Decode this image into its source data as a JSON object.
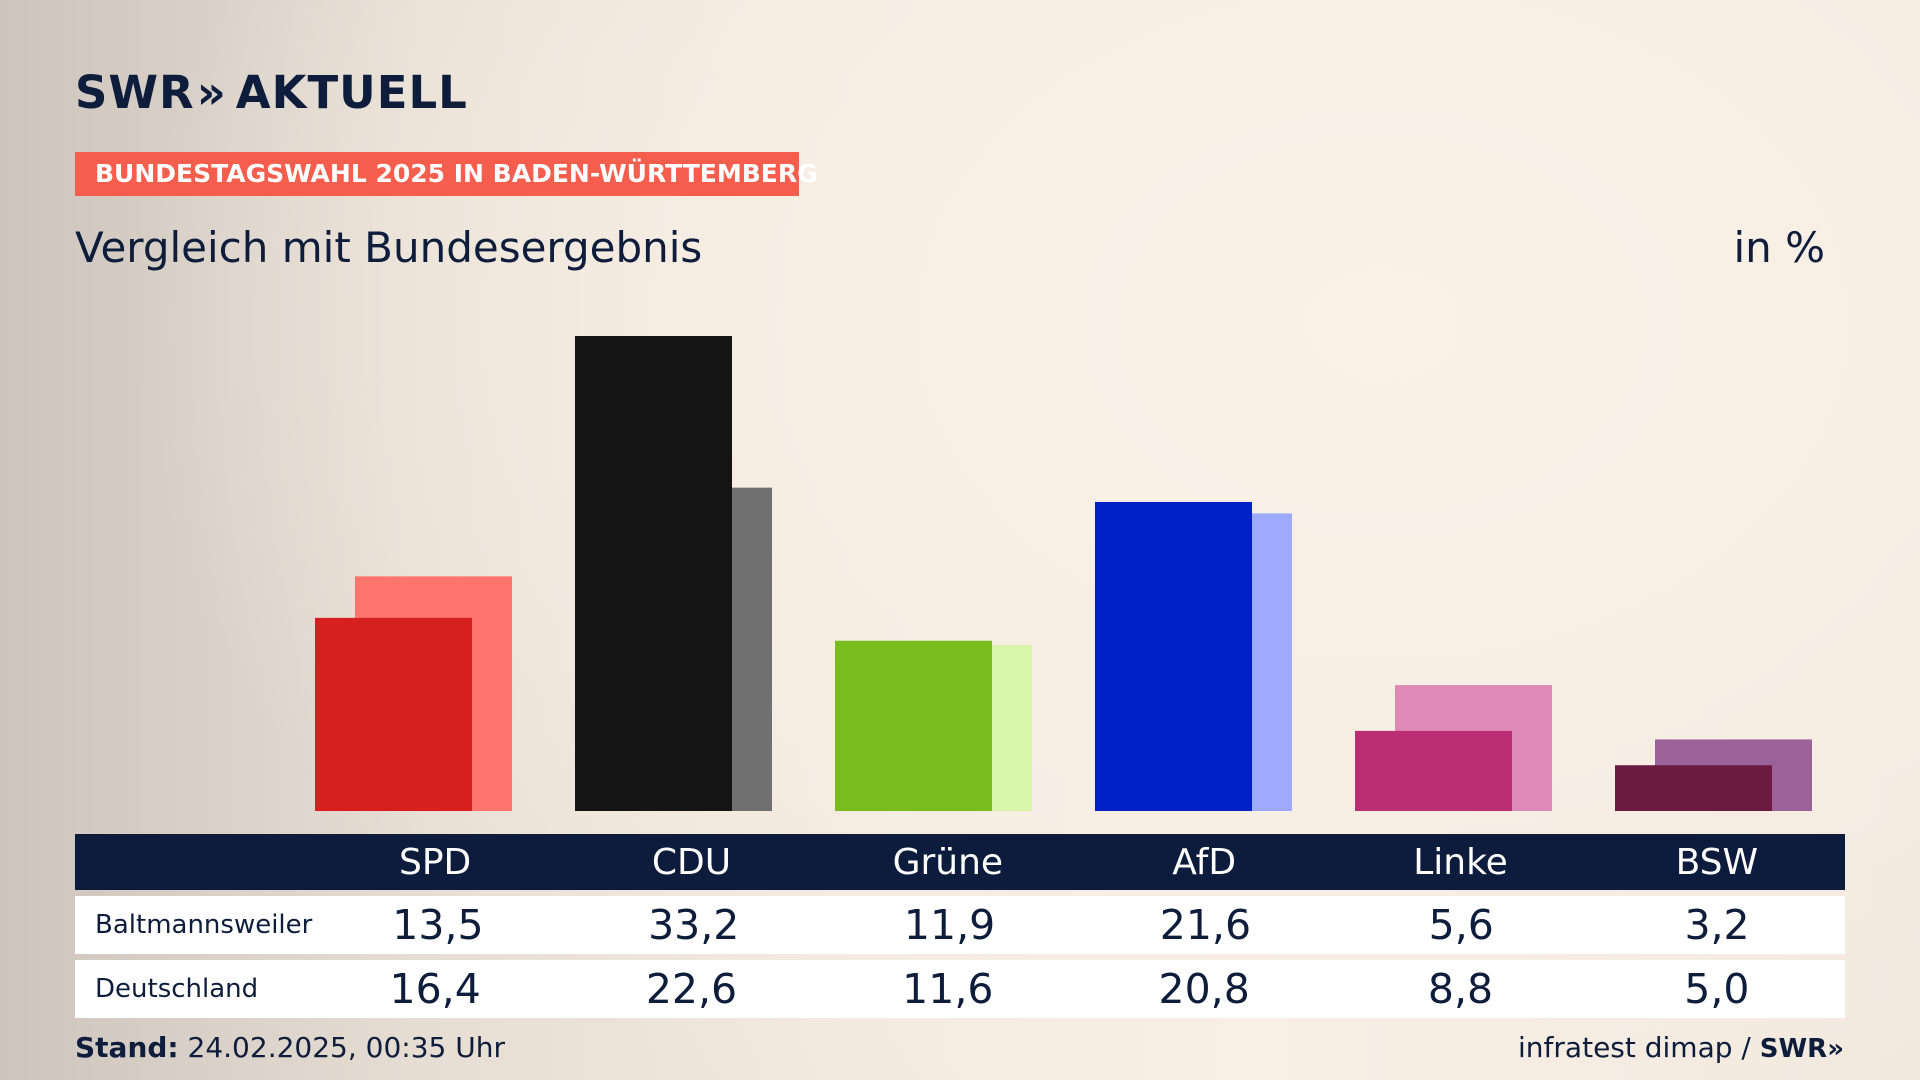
{
  "header": {
    "logo_text": "SWR",
    "logo_chevrons": "»",
    "logo_suffix": "AKTUELL",
    "tag": "BUNDESTAGSWAHL 2025 IN BADEN-WÜRTTEMBERG",
    "subtitle": "Vergleich mit Bundesergebnis",
    "unit": "in %"
  },
  "colors": {
    "accent_tag": "#f55d4d",
    "table_header": "#0d1c3c",
    "text": "#0e1d3b"
  },
  "chart_data": {
    "type": "bar",
    "title": "Vergleich mit Bundesergebnis",
    "unit": "in %",
    "categories": [
      "SPD",
      "CDU",
      "Grüne",
      "AfD",
      "Linke",
      "BSW"
    ],
    "series": [
      {
        "name": "Baltmannsweiler",
        "values": [
          13.5,
          33.2,
          11.9,
          21.6,
          5.6,
          3.2
        ],
        "colors": [
          "#d6201f",
          "#141414",
          "#78bc1e",
          "#0021c8",
          "#bb2d72",
          "#6b1a40"
        ]
      },
      {
        "name": "Deutschland",
        "values": [
          16.4,
          22.6,
          11.6,
          20.8,
          8.8,
          5.0
        ],
        "colors": [
          "#ff756d",
          "#707070",
          "#d8f5a8",
          "#9eaaff",
          "#de8ab7",
          "#9b6299"
        ]
      }
    ],
    "ylim": [
      0,
      33.2
    ],
    "grid": false,
    "legend": "table-below"
  },
  "table": {
    "headers": [
      "SPD",
      "CDU",
      "Grüne",
      "AfD",
      "Linke",
      "BSW"
    ],
    "rows": [
      {
        "label": "Baltmannsweiler",
        "values": [
          "13,5",
          "33,2",
          "11,9",
          "21,6",
          "5,6",
          "3,2"
        ]
      },
      {
        "label": "Deutschland",
        "values": [
          "16,4",
          "22,6",
          "11,6",
          "20,8",
          "8,8",
          "5,0"
        ]
      }
    ]
  },
  "footer": {
    "stand_label": "Stand:",
    "stand_value": "24.02.2025, 00:35 Uhr",
    "source": "infratest dimap /",
    "source_logo": "SWR»"
  }
}
